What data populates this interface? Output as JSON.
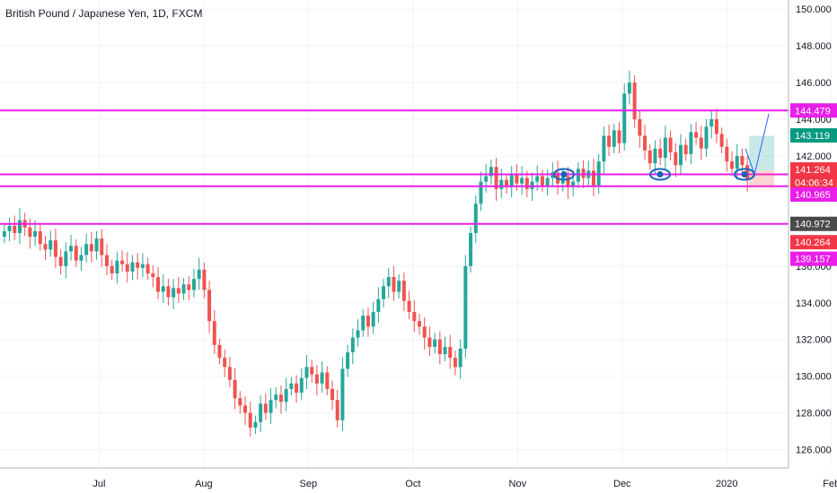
{
  "chart_data": {
    "type": "candlestick",
    "title": "British Pound / Japanese Yen, 1D, FXCM",
    "ylim": [
      125,
      150.5
    ],
    "y_ticks": [
      "150.000",
      "148.000",
      "146.000",
      "144.000",
      "142.000",
      "136.000",
      "134.000",
      "132.000",
      "130.000",
      "128.000",
      "126.000"
    ],
    "y_tick_values": [
      150,
      148,
      146,
      144,
      142,
      136,
      134,
      132,
      130,
      128,
      126
    ],
    "x_ticks": [
      "Jul",
      "Aug",
      "Sep",
      "Oct",
      "Nov",
      "Dec",
      "2020",
      "Feb"
    ],
    "x_tick_days": [
      7,
      47,
      87,
      127,
      167,
      207,
      247,
      287
    ],
    "grid": true,
    "horizontal_lines": [
      {
        "value": 144.479,
        "color": "#e91ee9"
      },
      {
        "value": 141.0,
        "color": "#e91ee9"
      },
      {
        "value": 140.35,
        "color": "#e91ee9"
      },
      {
        "value": 138.3,
        "color": "#e91ee9"
      }
    ],
    "price_tags": [
      {
        "label": "144.479",
        "value": 144.479,
        "color": "#e91ee9"
      },
      {
        "label": "143.119",
        "value": 143.119,
        "color": "#089981"
      },
      {
        "label": "141.264",
        "value": 141.264,
        "color": "#f23645"
      },
      {
        "label": "04:06:34",
        "value": 140.55,
        "color": "#f23645"
      },
      {
        "label": "140.965",
        "value": 139.9,
        "color": "#e91ee9"
      },
      {
        "label": "140.972",
        "value": 138.3,
        "color": "#4a4a4a"
      },
      {
        "label": "140.264",
        "value": 137.3,
        "color": "#f23645"
      },
      {
        "label": "139.157",
        "value": 136.4,
        "color": "#e91ee9"
      }
    ],
    "closes": [
      137.9,
      138.2,
      137.8,
      138.5,
      138.1,
      137.6,
      137.9,
      137.2,
      136.9,
      137.4,
      136.5,
      136.0,
      136.8,
      137.1,
      136.3,
      136.6,
      137.2,
      136.8,
      137.5,
      136.6,
      136.0,
      135.6,
      136.3,
      136.1,
      135.7,
      136.2,
      135.9,
      136.1,
      135.6,
      135.4,
      134.6,
      134.9,
      134.3,
      134.8,
      134.5,
      135.0,
      134.7,
      135.3,
      135.8,
      134.7,
      133.0,
      131.7,
      131.0,
      130.5,
      129.8,
      128.8,
      128.4,
      128.0,
      127.2,
      127.5,
      128.5,
      128.0,
      128.7,
      129.0,
      128.6,
      129.3,
      129.6,
      129.1,
      129.9,
      130.5,
      130.1,
      129.6,
      130.2,
      129.3,
      128.7,
      127.6,
      130.4,
      131.3,
      132.1,
      132.5,
      133.3,
      132.7,
      133.5,
      134.2,
      134.9,
      135.4,
      134.6,
      135.2,
      134.1,
      133.5,
      133.0,
      132.7,
      132.1,
      131.6,
      132.0,
      131.2,
      131.6,
      131.0,
      130.5,
      131.5,
      136.0,
      137.8,
      139.4,
      140.6,
      140.9,
      141.4,
      140.2,
      140.7,
      140.3,
      141.0,
      140.5,
      140.8,
      140.2,
      140.6,
      140.9,
      140.4,
      140.8,
      141.1,
      140.5,
      140.9,
      140.3,
      140.6,
      141.3,
      140.8,
      141.2,
      140.4,
      141.7,
      143.1,
      142.5,
      143.4,
      142.7,
      145.4,
      146.0,
      144.0,
      143.1,
      142.3,
      141.6,
      142.4,
      141.9,
      143.0,
      142.2,
      141.5,
      142.6,
      142.1,
      143.3,
      143.0,
      142.4,
      143.6,
      144.0,
      143.2,
      142.5,
      141.7,
      141.3,
      142.0,
      141.5,
      140.7
    ]
  }
}
